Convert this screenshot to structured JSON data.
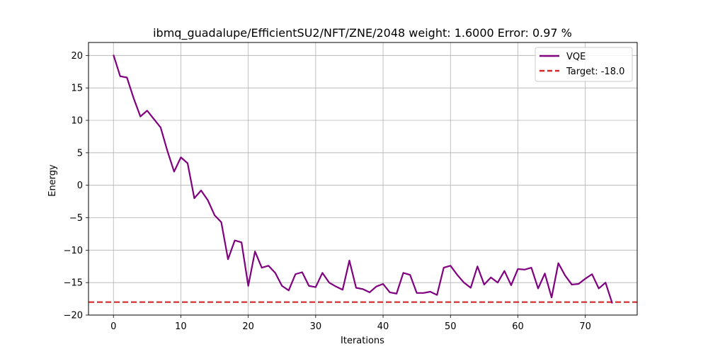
{
  "chart_data": {
    "type": "line",
    "title": "ibmq_guadalupe/EfficientSU2/NFT/ZNE/2048 weight: 1.6000 Error: 0.97 %",
    "xlabel": "Iterations",
    "ylabel": "Energy",
    "xlim": [
      -3.7,
      77.7
    ],
    "ylim": [
      -20,
      22
    ],
    "xticks": [
      0,
      10,
      20,
      30,
      40,
      50,
      60,
      70
    ],
    "yticks": [
      -20,
      -15,
      -10,
      -5,
      0,
      5,
      10,
      15,
      20
    ],
    "grid": true,
    "legend_position": "top-right",
    "series": [
      {
        "name": "VQE",
        "color": "#800080",
        "style": "solid",
        "x": [
          0,
          1,
          2,
          3,
          4,
          5,
          6,
          7,
          8,
          9,
          10,
          11,
          12,
          13,
          14,
          15,
          16,
          17,
          18,
          19,
          20,
          21,
          22,
          23,
          24,
          25,
          26,
          27,
          28,
          29,
          30,
          31,
          32,
          33,
          34,
          35,
          36,
          37,
          38,
          39,
          40,
          41,
          42,
          43,
          44,
          45,
          46,
          47,
          48,
          49,
          50,
          51,
          52,
          53,
          54,
          55,
          56,
          57,
          58,
          59,
          60,
          61,
          62,
          63,
          64,
          65,
          66,
          67,
          68,
          69,
          70,
          71,
          72,
          73,
          74
        ],
        "values": [
          20.1,
          16.8,
          16.6,
          13.4,
          10.6,
          11.5,
          10.2,
          8.9,
          5.3,
          2.1,
          4.3,
          3.4,
          -2.0,
          -0.8,
          -2.3,
          -4.6,
          -5.7,
          -11.4,
          -8.5,
          -8.8,
          -15.5,
          -10.2,
          -12.7,
          -12.4,
          -13.5,
          -15.5,
          -16.2,
          -13.7,
          -13.4,
          -15.5,
          -15.7,
          -13.5,
          -15.0,
          -15.6,
          -16.1,
          -11.6,
          -15.8,
          -16.0,
          -16.5,
          -15.6,
          -15.2,
          -16.5,
          -16.7,
          -13.5,
          -13.8,
          -16.6,
          -16.6,
          -16.4,
          -16.9,
          -12.7,
          -12.4,
          -13.8,
          -15.0,
          -15.8,
          -12.5,
          -15.3,
          -14.2,
          -15.0,
          -13.2,
          -15.4,
          -12.9,
          -13.0,
          -12.7,
          -15.9,
          -13.6,
          -17.3,
          -12.0,
          -13.9,
          -15.3,
          -15.2,
          -14.4,
          -13.7,
          -15.9,
          -15.0,
          -18.2
        ]
      },
      {
        "name": "Target: -18.0",
        "color": "#d62728",
        "style": "dashed",
        "constant": -18.0
      }
    ]
  }
}
